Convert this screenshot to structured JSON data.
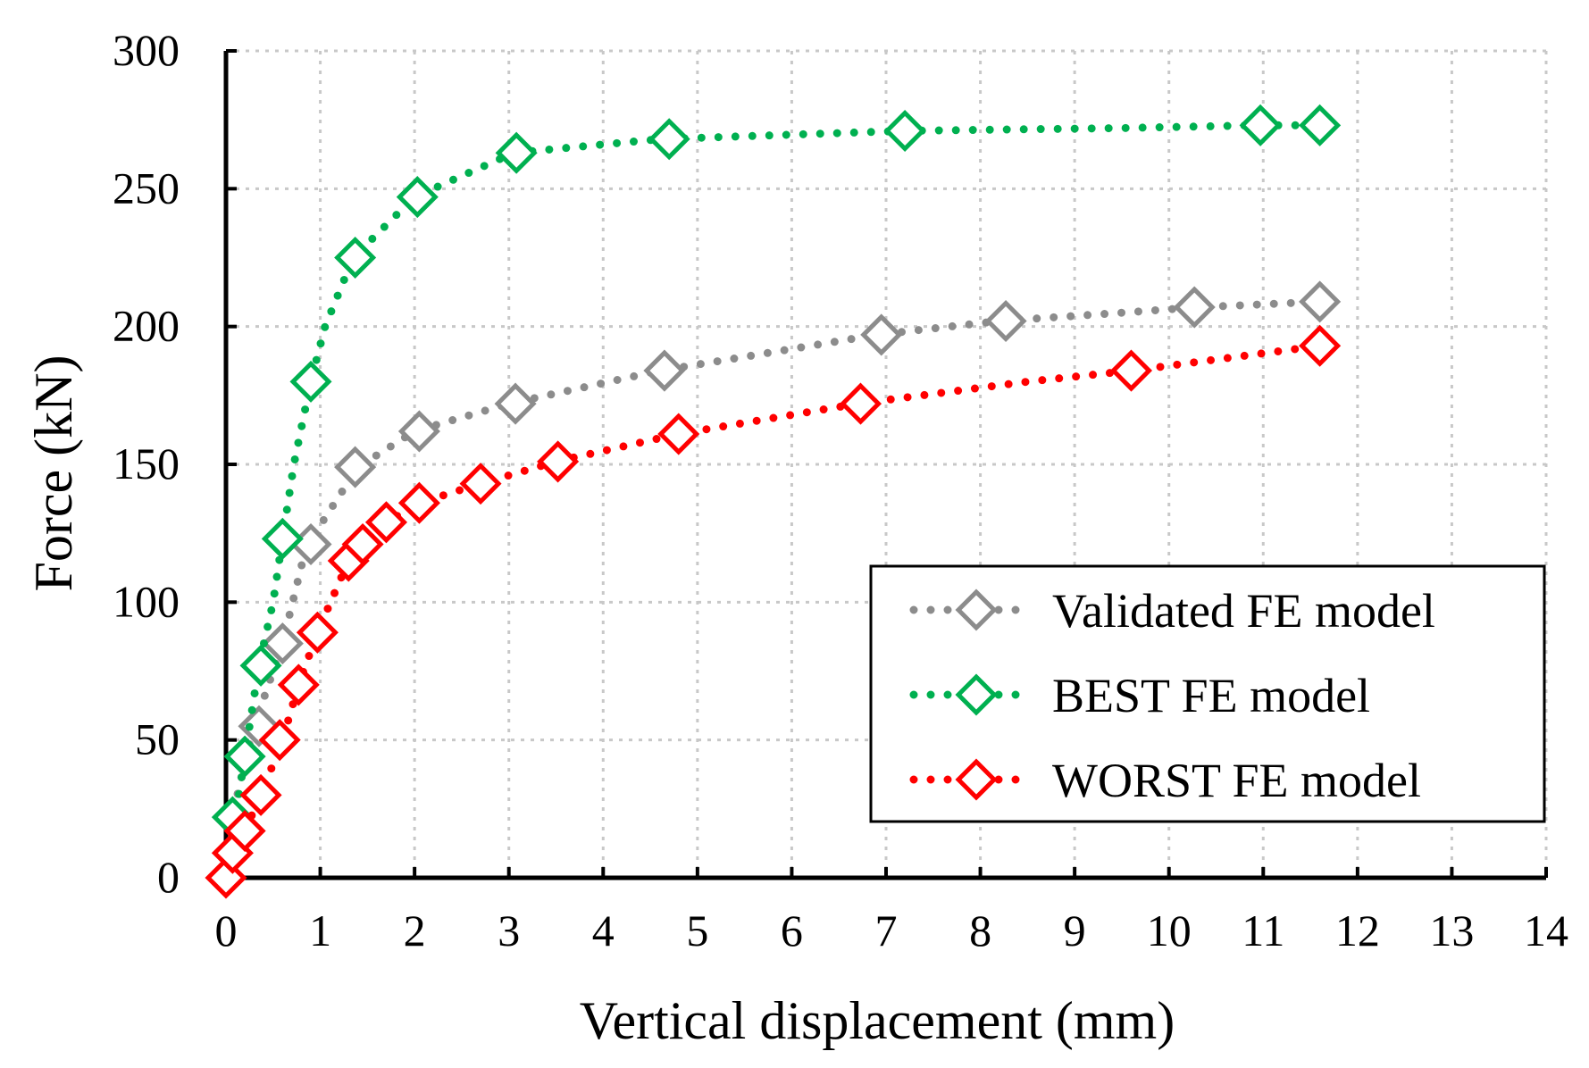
{
  "chart_data": {
    "type": "line",
    "title": "",
    "xlabel": "Vertical displacement (mm)",
    "ylabel": "Force (kN)",
    "xlim": [
      0,
      14
    ],
    "ylim": [
      0,
      300
    ],
    "xticks": [
      0,
      1,
      2,
      3,
      4,
      5,
      6,
      7,
      8,
      9,
      10,
      11,
      12,
      13,
      14
    ],
    "yticks": [
      0,
      50,
      100,
      150,
      200,
      250,
      300
    ],
    "grid": true,
    "legend_position": "bottom-right",
    "series": [
      {
        "name": "Validated FE model",
        "color": "#8c8c8c",
        "line": [
          [
            0,
            0
          ],
          [
            0.05,
            15
          ],
          [
            0.12,
            30
          ],
          [
            0.2,
            42
          ],
          [
            0.3,
            55
          ],
          [
            0.45,
            70
          ],
          [
            0.6,
            85
          ],
          [
            0.85,
            120
          ],
          [
            1.4,
            149
          ],
          [
            2.0,
            162
          ],
          [
            3.0,
            172
          ],
          [
            4.6,
            184
          ],
          [
            5.5,
            189
          ],
          [
            6.9,
            197
          ],
          [
            8.2,
            202
          ],
          [
            9.5,
            205
          ],
          [
            10.3,
            207
          ],
          [
            11.6,
            209
          ]
        ],
        "markers": [
          [
            0.35,
            55
          ],
          [
            0.6,
            85
          ],
          [
            0.9,
            121
          ],
          [
            1.37,
            149
          ],
          [
            2.05,
            162
          ],
          [
            3.07,
            172
          ],
          [
            4.65,
            184
          ],
          [
            6.95,
            197
          ],
          [
            8.27,
            202
          ],
          [
            10.27,
            207
          ],
          [
            11.6,
            209
          ]
        ]
      },
      {
        "name": "BEST FE model",
        "color": "#00b050",
        "line": [
          [
            0,
            0
          ],
          [
            0.1,
            22
          ],
          [
            0.2,
            44
          ],
          [
            0.35,
            77
          ],
          [
            0.5,
            100
          ],
          [
            0.6,
            123
          ],
          [
            0.72,
            150
          ],
          [
            0.9,
            180
          ],
          [
            1.05,
            200
          ],
          [
            1.35,
            225
          ],
          [
            2.0,
            247
          ],
          [
            3.05,
            263
          ],
          [
            4.6,
            268
          ],
          [
            7.2,
            271
          ],
          [
            9.5,
            272
          ],
          [
            10.95,
            273
          ],
          [
            11.6,
            273
          ]
        ],
        "markers": [
          [
            0.07,
            22
          ],
          [
            0.2,
            44
          ],
          [
            0.37,
            77
          ],
          [
            0.6,
            123
          ],
          [
            0.9,
            180
          ],
          [
            1.37,
            225
          ],
          [
            2.03,
            247
          ],
          [
            3.08,
            263
          ],
          [
            4.7,
            268
          ],
          [
            7.2,
            271
          ],
          [
            10.97,
            273
          ],
          [
            11.6,
            273
          ]
        ]
      },
      {
        "name": "WORST FE model",
        "color": "#ff0000",
        "line": [
          [
            0,
            0
          ],
          [
            0.07,
            9
          ],
          [
            0.2,
            17
          ],
          [
            0.37,
            30
          ],
          [
            0.6,
            50
          ],
          [
            0.77,
            70
          ],
          [
            0.97,
            89
          ],
          [
            1.3,
            115
          ],
          [
            1.45,
            121
          ],
          [
            1.7,
            129
          ],
          [
            2.05,
            136
          ],
          [
            2.7,
            143
          ],
          [
            3.5,
            151
          ],
          [
            4.8,
            161
          ],
          [
            6.7,
            172
          ],
          [
            8.5,
            180
          ],
          [
            9.6,
            184
          ],
          [
            11.6,
            193
          ]
        ],
        "markers": [
          [
            0,
            0
          ],
          [
            0.07,
            9
          ],
          [
            0.2,
            17
          ],
          [
            0.37,
            30
          ],
          [
            0.57,
            50
          ],
          [
            0.77,
            70
          ],
          [
            0.97,
            89
          ],
          [
            1.3,
            115
          ],
          [
            1.45,
            121
          ],
          [
            1.7,
            129
          ],
          [
            2.05,
            136
          ],
          [
            2.7,
            143
          ],
          [
            3.52,
            151
          ],
          [
            4.8,
            161
          ],
          [
            6.73,
            172
          ],
          [
            9.6,
            184
          ],
          [
            11.6,
            193
          ]
        ]
      }
    ]
  }
}
